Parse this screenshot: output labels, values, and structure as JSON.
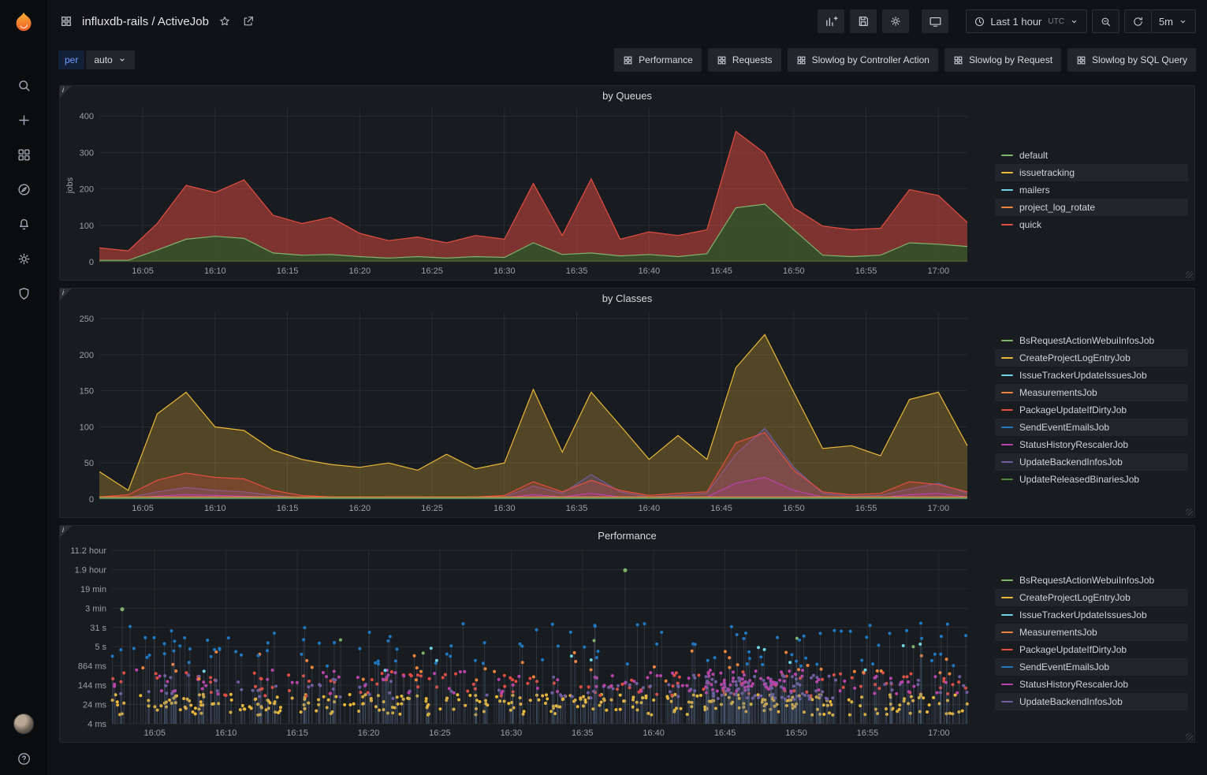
{
  "header": {
    "title": "influxdb-rails / ActiveJob",
    "time_range": "Last 1 hour",
    "timezone": "UTC",
    "refresh_interval": "5m",
    "toolbar_icons": [
      "add-panel",
      "save-dashboard",
      "dashboard-settings",
      "cycle-view-mode",
      "time-range",
      "zoom-out",
      "refresh",
      "refresh-interval"
    ]
  },
  "sidebar": {
    "icons": [
      "grafana-logo",
      "search",
      "create",
      "dashboards",
      "explore",
      "alerting",
      "configuration",
      "server-admin",
      "user-avatar",
      "help"
    ]
  },
  "subnav": {
    "variable_label": "per",
    "variable_value": "auto",
    "links": [
      "Performance",
      "Requests",
      "Slowlog by Controller Action",
      "Slowlog by Request",
      "Slowlog by SQL Query"
    ]
  },
  "panels": {
    "queues": {
      "title": "by Queues",
      "ylabel": "jobs",
      "legend": [
        {
          "label": "default",
          "color": "#7EB26D"
        },
        {
          "label": "issuetracking",
          "color": "#EAB839"
        },
        {
          "label": "mailers",
          "color": "#6ED0E0"
        },
        {
          "label": "project_log_rotate",
          "color": "#EF843C"
        },
        {
          "label": "quick",
          "color": "#E24D42"
        }
      ]
    },
    "classes": {
      "title": "by Classes",
      "legend": [
        {
          "label": "BsRequestActionWebuiInfosJob",
          "color": "#7EB26D"
        },
        {
          "label": "CreateProjectLogEntryJob",
          "color": "#EAB839"
        },
        {
          "label": "IssueTrackerUpdateIssuesJob",
          "color": "#6ED0E0"
        },
        {
          "label": "MeasurementsJob",
          "color": "#EF843C"
        },
        {
          "label": "PackageUpdateIfDirtyJob",
          "color": "#E24D42"
        },
        {
          "label": "SendEventEmailsJob",
          "color": "#1F78C1"
        },
        {
          "label": "StatusHistoryRescalerJob",
          "color": "#BA43A9"
        },
        {
          "label": "UpdateBackendInfosJob",
          "color": "#705DA0"
        },
        {
          "label": "UpdateReleasedBinariesJob",
          "color": "#508642"
        }
      ]
    },
    "performance": {
      "title": "Performance",
      "legend": [
        {
          "label": "BsRequestActionWebuiInfosJob",
          "color": "#7EB26D"
        },
        {
          "label": "CreateProjectLogEntryJob",
          "color": "#EAB839"
        },
        {
          "label": "IssueTrackerUpdateIssuesJob",
          "color": "#6ED0E0"
        },
        {
          "label": "MeasurementsJob",
          "color": "#EF843C"
        },
        {
          "label": "PackageUpdateIfDirtyJob",
          "color": "#E24D42"
        },
        {
          "label": "SendEventEmailsJob",
          "color": "#1F78C1"
        },
        {
          "label": "StatusHistoryRescalerJob",
          "color": "#BA43A9"
        },
        {
          "label": "UpdateBackendInfosJob",
          "color": "#705DA0"
        }
      ]
    }
  },
  "chart_data": [
    {
      "id": "chart-queues",
      "type": "area",
      "title": "by Queues",
      "ylabel": "jobs",
      "x_start": "16:02",
      "x_end": "17:02",
      "n_points": 31,
      "x_ticks": [
        "16:05",
        "16:10",
        "16:15",
        "16:20",
        "16:25",
        "16:30",
        "16:35",
        "16:40",
        "16:45",
        "16:50",
        "16:55",
        "17:00"
      ],
      "y_ticks": [
        0,
        100,
        200,
        300,
        400
      ],
      "y_max": 420,
      "series": [
        {
          "name": "quick",
          "color": "#E24D42",
          "fill": 0.5,
          "values": [
            38,
            30,
            105,
            210,
            190,
            225,
            128,
            105,
            122,
            78,
            58,
            68,
            52,
            72,
            62,
            215,
            72,
            228,
            62,
            82,
            72,
            88,
            358,
            298,
            148,
            98,
            88,
            92,
            198,
            182,
            108
          ]
        },
        {
          "name": "issuetracking",
          "color": "#EAB839",
          "flat": 3
        },
        {
          "name": "mailers",
          "color": "#6ED0E0",
          "flat": 2
        },
        {
          "name": "project_log_rotate",
          "color": "#EF843C",
          "flat": 2
        },
        {
          "name": "default",
          "color": "#7EB26D",
          "fill": 0.9,
          "fill_color": "#33502b",
          "values": [
            4,
            4,
            32,
            62,
            70,
            64,
            24,
            18,
            20,
            14,
            10,
            14,
            10,
            14,
            12,
            52,
            20,
            24,
            16,
            20,
            14,
            22,
            148,
            158,
            88,
            18,
            14,
            18,
            52,
            48,
            42
          ]
        }
      ]
    },
    {
      "id": "chart-classes",
      "type": "area",
      "title": "by Classes",
      "x_start": "16:02",
      "x_end": "17:02",
      "n_points": 31,
      "x_ticks": [
        "16:05",
        "16:10",
        "16:15",
        "16:20",
        "16:25",
        "16:30",
        "16:35",
        "16:40",
        "16:45",
        "16:50",
        "16:55",
        "17:00"
      ],
      "y_ticks": [
        0,
        50,
        100,
        150,
        200,
        250
      ],
      "y_max": 260,
      "series": [
        {
          "name": "CreateProjectLogEntryJob",
          "color": "#EAB839",
          "fill": 0.28,
          "values": [
            38,
            12,
            118,
            148,
            100,
            95,
            68,
            55,
            48,
            44,
            50,
            40,
            62,
            42,
            50,
            152,
            65,
            148,
            102,
            55,
            88,
            55,
            182,
            228,
            148,
            70,
            74,
            60,
            138,
            148,
            74
          ]
        },
        {
          "name": "UpdateBackendInfosJob",
          "color": "#705DA0",
          "fill": 0.3,
          "values": [
            1,
            2,
            10,
            16,
            12,
            10,
            5,
            2,
            2,
            1,
            2,
            2,
            1,
            2,
            3,
            18,
            8,
            34,
            10,
            3,
            5,
            8,
            62,
            98,
            44,
            8,
            4,
            5,
            14,
            22,
            8
          ]
        },
        {
          "name": "PackageUpdateIfDirtyJob",
          "color": "#E24D42",
          "fill": 0.25,
          "values": [
            3,
            6,
            26,
            36,
            30,
            28,
            12,
            5,
            3,
            2,
            3,
            3,
            2,
            3,
            5,
            24,
            10,
            26,
            12,
            5,
            8,
            10,
            78,
            92,
            40,
            10,
            6,
            8,
            24,
            20,
            10
          ]
        },
        {
          "name": "StatusHistoryRescalerJob",
          "color": "#BA43A9",
          "fill": 0.2,
          "values": [
            1,
            1,
            4,
            6,
            5,
            4,
            2,
            1,
            1,
            1,
            1,
            1,
            1,
            1,
            2,
            6,
            3,
            8,
            3,
            1,
            2,
            3,
            22,
            30,
            12,
            3,
            2,
            2,
            6,
            8,
            3
          ]
        },
        {
          "name": "BsRequestActionWebuiInfosJob",
          "color": "#7EB26D",
          "flat": 2
        },
        {
          "name": "IssueTrackerUpdateIssuesJob",
          "color": "#6ED0E0",
          "flat": 1
        },
        {
          "name": "MeasurementsJob",
          "color": "#EF843C",
          "flat": 3
        },
        {
          "name": "SendEventEmailsJob",
          "color": "#1F78C1",
          "flat": 1
        },
        {
          "name": "UpdateReleasedBinariesJob",
          "color": "#508642",
          "flat": 1
        }
      ]
    },
    {
      "id": "chart-performance",
      "type": "scatter",
      "title": "Performance",
      "x_start": "16:02",
      "x_end": "17:02",
      "x_ticks": [
        "16:05",
        "16:10",
        "16:15",
        "16:20",
        "16:25",
        "16:30",
        "16:35",
        "16:40",
        "16:45",
        "16:50",
        "16:55",
        "17:00"
      ],
      "y_ticks": [
        "4 ms",
        "24 ms",
        "144 ms",
        "864 ms",
        "5 s",
        "31 s",
        "3 min",
        "19 min",
        "1.9 hour",
        "11.2 hour"
      ],
      "series": [
        {
          "name": "CreateProjectLogEntryJob",
          "color": "#EAB839",
          "count": 330,
          "band": [
            0.05,
            0.17
          ]
        },
        {
          "name": "PackageUpdateIfDirtyJob",
          "color": "#E24D42",
          "count": 120,
          "band": [
            0.16,
            0.3
          ]
        },
        {
          "name": "UpdateBackendInfosJob",
          "color": "#705DA0",
          "count": 150,
          "band": [
            0.14,
            0.28
          ],
          "cluster": {
            "center": 0.75,
            "spread": 0.05,
            "frac": 0.45
          }
        },
        {
          "name": "StatusHistoryRescalerJob",
          "color": "#BA43A9",
          "count": 140,
          "band": [
            0.17,
            0.31
          ],
          "cluster": {
            "center": 0.74,
            "spread": 0.05,
            "frac": 0.4
          }
        },
        {
          "name": "MeasurementsJob",
          "color": "#EF843C",
          "count": 40,
          "band": [
            0.24,
            0.42
          ]
        },
        {
          "name": "SendEventEmailsJob",
          "color": "#1F78C1",
          "count": 110,
          "band": [
            0.33,
            0.58
          ]
        },
        {
          "name": "IssueTrackerUpdateIssuesJob",
          "color": "#6ED0E0",
          "count": 12,
          "band": [
            0.3,
            0.46
          ]
        },
        {
          "name": "BsRequestActionWebuiInfosJob",
          "color": "#7EB26D",
          "count": 5,
          "band": [
            0.4,
            0.52
          ]
        }
      ],
      "highlights": [
        {
          "x": 0.012,
          "f": 0.66,
          "color": "#7EB26D"
        },
        {
          "x": 0.6,
          "f": 0.885,
          "color": "#7EB26D"
        }
      ]
    }
  ]
}
